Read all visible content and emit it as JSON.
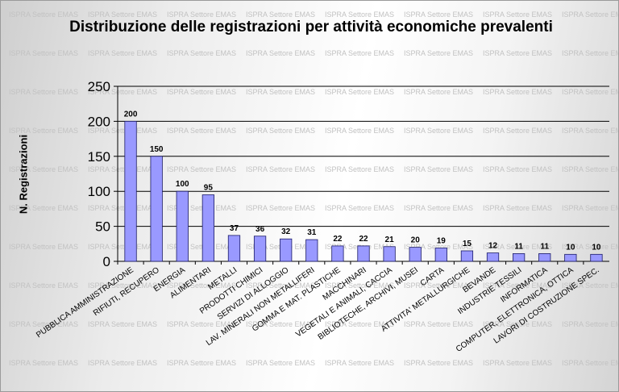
{
  "watermark_text": "ISPRA Settore EMAS",
  "chart_data": {
    "type": "bar",
    "title": "Distribuzione delle registrazioni per attività economiche prevalenti",
    "xlabel": "",
    "ylabel": "N. Registrazioni",
    "ylim": [
      0,
      250
    ],
    "yticks": [
      0,
      50,
      100,
      150,
      200,
      250
    ],
    "grid": true,
    "legend": "none",
    "bar_color": "#9999ff",
    "categories": [
      "PUBBLICA AMMINISTRAZIONE",
      "RIFIUTI, RECUPERO",
      "ENERGIA",
      "ALIMENTARI",
      "METALLI",
      "PRODOTTI CHIMICI",
      "SERVIZI DI ALLOGGIO",
      "LAV. MINERALI NON METALLIFERI",
      "GOMMA E MAT. PLASTICHE",
      "MACCHINARI",
      "VEGETALI E ANIMALI, CACCIA",
      "BIBLIOTECHE, ARCHIVI, MUSEI",
      "CARTA",
      "ATTIVITA' METALLURGICHE",
      "BEVANDE",
      "INDUSTRIE TESSILI",
      "INFORMATICA",
      "COMPUTER, ELETTRONICA, OTTICA",
      "LAVORI DI COSTRUZIONE SPEC."
    ],
    "values": [
      200,
      150,
      100,
      95,
      37,
      36,
      32,
      31,
      22,
      22,
      21,
      20,
      19,
      15,
      12,
      11,
      11,
      10,
      10
    ]
  }
}
